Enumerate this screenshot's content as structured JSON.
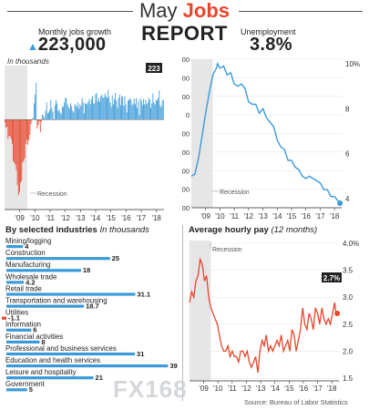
{
  "header": {
    "title_part1": "May",
    "title_part2": "Jobs",
    "report": "REPORT",
    "jobs_label": "Monthly jobs growth",
    "jobs_value": "223,000",
    "unemp_label": "Unemployment",
    "unemp_value": "3.8%"
  },
  "colors": {
    "accent_red": "#e8452c",
    "accent_blue": "#3a9ad9",
    "recession_shade": "#e6e6e6"
  },
  "chart_data": [
    {
      "type": "bar",
      "name": "jobs",
      "subtitle": "In thousands",
      "x_ticks": [
        "'09",
        "'10",
        "'11",
        "'12",
        "'13",
        "'14",
        "'15",
        "'16",
        "'17",
        "'18"
      ],
      "x_range": [
        2008.0,
        2018.5
      ],
      "ylim": [
        -1000,
        600
      ],
      "recession": [
        2008.0,
        2009.5
      ],
      "recession_label": "Recession",
      "last_value_label": "223",
      "values": [
        -30,
        -90,
        -80,
        -215,
        -180,
        -190,
        -215,
        -270,
        -460,
        -480,
        -500,
        -560,
        -730,
        -840,
        -800,
        -700,
        -680,
        -480,
        -460,
        -430,
        -270,
        -220,
        -280,
        -230,
        -170,
        -50,
        -10,
        20,
        180,
        280,
        410,
        -100,
        -60,
        -20,
        -140,
        -20,
        60,
        40,
        20,
        100,
        190,
        70,
        80,
        110,
        220,
        130,
        90,
        -10,
        160,
        220,
        180,
        100,
        110,
        80,
        60,
        150,
        140,
        190,
        240,
        240,
        170,
        140,
        120,
        180,
        150,
        100,
        80,
        170,
        160,
        140,
        190,
        120,
        170,
        150,
        240,
        190,
        70,
        180,
        180,
        170,
        200,
        230,
        170,
        230,
        260,
        180,
        180,
        280,
        300,
        200,
        240,
        200,
        260,
        280,
        240,
        250,
        290,
        260,
        240,
        330,
        250,
        190,
        140,
        270,
        170,
        230,
        300,
        210,
        130,
        240,
        280,
        160,
        260,
        250,
        150,
        260,
        170,
        80,
        210,
        220,
        240,
        220,
        160,
        180,
        230,
        170,
        240,
        130,
        210,
        50,
        240,
        210,
        160,
        230,
        170,
        220,
        170,
        190,
        240,
        220,
        130,
        180,
        290,
        190,
        170,
        220,
        210,
        240,
        320,
        160,
        140,
        210,
        223
      ]
    },
    {
      "type": "line",
      "name": "unemployment",
      "y_ticks": [
        "10%",
        "8",
        "6",
        "4"
      ],
      "ylim": [
        3.6,
        10.2
      ],
      "x_ticks": [
        "'09",
        "'10",
        "'11",
        "'12",
        "'13",
        "'14",
        "'15",
        "'16",
        "'17",
        "'18"
      ],
      "x_range": [
        2008.0,
        2018.5
      ],
      "recession": [
        2008.0,
        2009.5
      ],
      "recession_label": "Recession",
      "x": [
        2008.0,
        2008.25,
        2008.5,
        2008.75,
        2009.0,
        2009.25,
        2009.5,
        2009.75,
        2009.83,
        2010.0,
        2010.25,
        2010.5,
        2010.75,
        2011.0,
        2011.25,
        2011.5,
        2011.75,
        2012.0,
        2012.25,
        2012.5,
        2012.75,
        2013.0,
        2013.25,
        2013.5,
        2013.75,
        2014.0,
        2014.25,
        2014.5,
        2014.75,
        2015.0,
        2015.25,
        2015.5,
        2015.75,
        2016.0,
        2016.25,
        2016.5,
        2016.75,
        2017.0,
        2017.25,
        2017.5,
        2017.75,
        2018.0,
        2018.25,
        2018.38
      ],
      "y": [
        5.0,
        5.1,
        5.8,
        6.8,
        7.8,
        8.7,
        9.5,
        9.8,
        10.0,
        9.8,
        9.9,
        9.5,
        9.6,
        9.1,
        9.0,
        9.1,
        8.9,
        8.3,
        8.2,
        8.2,
        7.8,
        8.0,
        7.6,
        7.4,
        7.2,
        6.6,
        6.3,
        6.2,
        5.7,
        5.7,
        5.4,
        5.3,
        5.0,
        4.9,
        5.0,
        4.9,
        4.8,
        4.7,
        4.4,
        4.4,
        4.1,
        4.1,
        3.9,
        3.8
      ]
    },
    {
      "type": "bar",
      "name": "industries",
      "title": "By selected industries",
      "subtitle": "In thousands",
      "categories": [
        "Mining/logging",
        "Construction",
        "Manufacturing",
        "Wholesale trade",
        "Retail trade",
        "Transportation and warehousing",
        "Utilities",
        "Information",
        "Financial activities",
        "Professional and business services",
        "Education and health services",
        "Leisure and hospitality",
        "Government"
      ],
      "values": [
        4,
        25,
        18,
        4.2,
        31.1,
        18.7,
        -1.1,
        6,
        8,
        31,
        39,
        21,
        5
      ],
      "value_labels": [
        "4",
        "25",
        "18",
        "4.2",
        "31.1",
        "18.7",
        "-1.1",
        "6",
        "8",
        "31",
        "39",
        "21",
        "5"
      ]
    },
    {
      "type": "line",
      "name": "hourly_pay",
      "title": "Average hourly pay",
      "subtitle": "(12 months)",
      "y_ticks": [
        "4.0%",
        "3.5",
        "3.0",
        "2.5",
        "2.0",
        "1.5"
      ],
      "ylim": [
        1.45,
        4.05
      ],
      "x_ticks": [
        "'09",
        "'10",
        "'11",
        "'12",
        "'13",
        "'14",
        "'15",
        "'16",
        "'17",
        "'18"
      ],
      "x_range": [
        2008.0,
        2018.5
      ],
      "recession": [
        2008.0,
        2009.5
      ],
      "recession_label": "Recession",
      "last_value_label": "2.7%",
      "x": [
        2008.0,
        2008.15,
        2008.3,
        2008.45,
        2008.6,
        2008.75,
        2008.9,
        2009.05,
        2009.2,
        2009.35,
        2009.5,
        2009.65,
        2009.8,
        2009.95,
        2010.1,
        2010.25,
        2010.4,
        2010.55,
        2010.7,
        2010.85,
        2011.0,
        2011.15,
        2011.3,
        2011.45,
        2011.6,
        2011.75,
        2011.9,
        2012.05,
        2012.2,
        2012.35,
        2012.5,
        2012.65,
        2012.8,
        2012.95,
        2013.1,
        2013.25,
        2013.4,
        2013.55,
        2013.7,
        2013.85,
        2014.0,
        2014.15,
        2014.3,
        2014.45,
        2014.6,
        2014.75,
        2014.9,
        2015.05,
        2015.2,
        2015.35,
        2015.5,
        2015.65,
        2015.8,
        2015.95,
        2016.1,
        2016.25,
        2016.4,
        2016.55,
        2016.7,
        2016.85,
        2017.0,
        2017.15,
        2017.3,
        2017.45,
        2017.6,
        2017.75,
        2017.9,
        2018.05,
        2018.2,
        2018.3,
        2018.38
      ],
      "y": [
        2.9,
        3.1,
        3.0,
        3.3,
        3.4,
        3.7,
        3.6,
        3.3,
        3.4,
        3.0,
        2.8,
        2.7,
        2.6,
        2.5,
        2.3,
        2.1,
        2.0,
        2.0,
        2.1,
        1.9,
        2.0,
        1.9,
        1.9,
        1.8,
        2.0,
        2.0,
        1.9,
        2.0,
        1.8,
        1.7,
        1.8,
        1.9,
        1.6,
        2.0,
        2.2,
        2.1,
        2.3,
        2.0,
        2.1,
        2.0,
        2.1,
        2.2,
        2.1,
        2.3,
        2.0,
        2.1,
        2.2,
        2.0,
        2.4,
        2.3,
        2.0,
        2.2,
        2.4,
        2.8,
        2.5,
        2.4,
        2.7,
        2.6,
        2.4,
        2.8,
        2.7,
        2.5,
        2.8,
        2.6,
        2.5,
        2.6,
        2.5,
        2.7,
        2.9,
        2.7,
        2.7
      ]
    }
  ],
  "footer": {
    "source": "Source: Bureau of Labor Statistics",
    "watermark": "FX168"
  }
}
